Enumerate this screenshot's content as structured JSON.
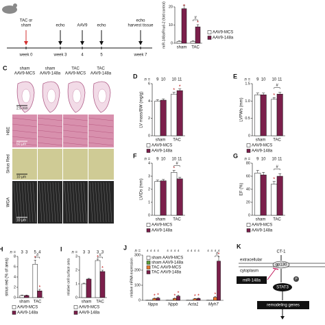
{
  "chart_data": [
    {
      "type": "bar",
      "ylabel": "miR-148a/Rnu6-2 (fold control)",
      "categories": [
        "sham",
        "TAC"
      ],
      "series": [
        {
          "name": "AAV9-MCS",
          "color": "#ffffff",
          "values": [
            1,
            1
          ],
          "errors": [
            0.3,
            0.3
          ]
        },
        {
          "name": "AAV9-148a",
          "color": "#7b1f4b",
          "values": [
            19,
            9
          ],
          "errors": [
            2,
            1.2
          ],
          "stars": [
            "*",
            "*"
          ]
        }
      ],
      "ylim": [
        0,
        20
      ],
      "yticks": [
        0,
        10,
        20
      ],
      "bracket": "#",
      "legend": "right"
    },
    {
      "type": "bar",
      "panel": "D",
      "ylabel": "LV mass/BW (mg/g)",
      "n_label": "n =",
      "n": [
        9,
        10,
        10,
        11
      ],
      "categories": [
        "sham",
        "TAC"
      ],
      "series": [
        {
          "name": "AAV9-MCS",
          "color": "#ffffff",
          "values": [
            4.0,
            4.8
          ],
          "errors": [
            0.15,
            0.2
          ],
          "stars": [
            null,
            "*"
          ]
        },
        {
          "name": "AAV9-148a",
          "color": "#7b1f4b",
          "values": [
            4.1,
            5.2
          ],
          "errors": [
            0.15,
            0.2
          ],
          "stars": [
            null,
            "*"
          ]
        }
      ],
      "ylim": [
        0,
        6
      ],
      "yticks": [
        0,
        2,
        4,
        6
      ],
      "legend": "below"
    },
    {
      "type": "bar",
      "panel": "E",
      "ylabel": "LVPWs (mm)",
      "n_label": "n =",
      "n": [
        9,
        10,
        10,
        11
      ],
      "categories": [
        "sham",
        "TAC"
      ],
      "series": [
        {
          "name": "AAV9-MCS",
          "color": "#ffffff",
          "values": [
            1.18,
            1.05
          ],
          "errors": [
            0.05,
            0.05
          ],
          "stars": [
            null,
            "*"
          ]
        },
        {
          "name": "AAV9-148a",
          "color": "#7b1f4b",
          "values": [
            1.18,
            1.2
          ],
          "errors": [
            0.05,
            0.05
          ]
        }
      ],
      "ylim": [
        0,
        1.5
      ],
      "yticks": [
        0,
        0.5,
        {
          "value": 1,
          "label": "1.0"
        },
        1.5
      ],
      "bracket": "#",
      "legend": "below"
    },
    {
      "type": "bar",
      "panel": "F",
      "ylabel": "LVIDs (mm)",
      "n_label": "n =",
      "n": [
        9,
        10,
        10,
        11
      ],
      "categories": [
        "sham",
        "TAC"
      ],
      "series": [
        {
          "name": "AAV9-MCS",
          "color": "#ffffff",
          "values": [
            2.6,
            3.3
          ],
          "errors": [
            0.1,
            0.15
          ],
          "stars": [
            null,
            "*"
          ]
        },
        {
          "name": "AAV9-148a",
          "color": "#7b1f4b",
          "values": [
            2.65,
            2.8
          ],
          "errors": [
            0.1,
            0.12
          ]
        }
      ],
      "ylim": [
        0,
        4
      ],
      "yticks": [
        0,
        1,
        2,
        3,
        4
      ],
      "bracket": "#",
      "legend": "below"
    },
    {
      "type": "bar",
      "panel": "G",
      "ylabel": "EF (%)",
      "n_label": "n =",
      "n": [
        9,
        10,
        10,
        11
      ],
      "categories": [
        "sham",
        "TAC"
      ],
      "series": [
        {
          "name": "AAV9-MCS",
          "color": "#ffffff",
          "values": [
            65,
            48
          ],
          "errors": [
            4,
            4
          ],
          "stars": [
            null,
            "*"
          ]
        },
        {
          "name": "AAV9-148a",
          "color": "#7b1f4b",
          "values": [
            62,
            60
          ],
          "errors": [
            4,
            4
          ]
        }
      ],
      "ylim": [
        0,
        80
      ],
      "yticks": [
        0,
        20,
        40,
        60,
        80
      ],
      "bracket": "#",
      "legend": "below"
    },
    {
      "type": "bar",
      "panel": "H",
      "ylabel": "sirius red (% of area)",
      "n_label": "n =",
      "n": [
        3,
        3,
        5,
        4
      ],
      "categories": [
        "sham",
        "TAC"
      ],
      "series": [
        {
          "name": "AAV9-MCS",
          "color": "#ffffff",
          "values": [
            0.4,
            6.5
          ],
          "errors": [
            0.1,
            0.8
          ],
          "stars": [
            null,
            "*"
          ]
        },
        {
          "name": "AAV9-148a",
          "color": "#7b1f4b",
          "values": [
            0.4,
            1.3
          ],
          "errors": [
            0.1,
            0.3
          ],
          "stars": [
            null,
            "*"
          ]
        }
      ],
      "ylim": [
        0,
        8
      ],
      "yticks": [
        0,
        2,
        4,
        6,
        8
      ],
      "bracket": "#",
      "legend": "below"
    },
    {
      "type": "bar",
      "panel": "I",
      "ylabel": "relative cell surface area",
      "n_label": "n =",
      "n": [
        3,
        3,
        3,
        3
      ],
      "categories": [
        "sham",
        "TAC"
      ],
      "series": [
        {
          "name": "AAV9-MCS",
          "color": "#ffffff",
          "values": [
            1,
            2.7
          ],
          "errors": [
            0.05,
            0.1
          ],
          "stars": [
            null,
            "*"
          ]
        },
        {
          "name": "AAV9-148a",
          "color": "#7b1f4b",
          "values": [
            1.35,
            1.9
          ],
          "errors": [
            0.05,
            0.1
          ],
          "stars": [
            null,
            "*"
          ]
        }
      ],
      "ylim": [
        0,
        3
      ],
      "yticks": [
        0,
        1,
        2,
        3
      ],
      "bracket": "#",
      "legend": "below"
    },
    {
      "type": "bar",
      "panel": "J",
      "ylabel": "relative mRNA expression",
      "n_label": "n =",
      "n": [
        4,
        4,
        4,
        4,
        4,
        4,
        4,
        4,
        4,
        4,
        4,
        4,
        4,
        4,
        4,
        4
      ],
      "categories": [
        "Nppa",
        "Nppb",
        "Acta1",
        "Myh7"
      ],
      "series": [
        {
          "name": "sham AAV9-MCS",
          "color": "#ffffff",
          "values": [
            1,
            1,
            1,
            1
          ],
          "errors": [
            0.5,
            0.5,
            0.5,
            0.5
          ]
        },
        {
          "name": "sham AAV9-148a",
          "color": "#5a9e3a",
          "values": [
            1,
            1,
            1,
            1
          ],
          "errors": [
            0.5,
            0.5,
            0.5,
            0.5
          ]
        },
        {
          "name": "TAC AAV9-MCS",
          "color": "#e8762b",
          "values": [
            12,
            12,
            10,
            20
          ],
          "errors": [
            3,
            3,
            3,
            5
          ],
          "stars": [
            "*",
            "*",
            "*",
            "*"
          ]
        },
        {
          "name": "TAC AAV9-148a",
          "color": "#7b1f4b",
          "values": [
            15,
            28,
            12,
            260
          ],
          "errors": [
            4,
            6,
            3,
            30
          ],
          "stars": [
            "*",
            "*",
            "*",
            "*"
          ]
        }
      ],
      "ylim": [
        0,
        300
      ],
      "yticks": [
        0,
        100,
        200,
        300
      ],
      "bracket": "#",
      "legend": "inside"
    }
  ],
  "timeline": {
    "top": [
      [
        "TAC or",
        "sham"
      ],
      [
        "echo"
      ],
      [
        "AAV9"
      ],
      [
        "echo"
      ],
      [
        "echo",
        "harvest tissue"
      ]
    ],
    "bottom": [
      "week 0",
      "week 3",
      "4",
      "5",
      "week 7"
    ]
  },
  "micrographs": {
    "panel": "C",
    "columns": [
      [
        "sham",
        "AAV9-MCS"
      ],
      [
        "sham",
        "AAV9-148a"
      ],
      [
        "TAC",
        "AAV9-MCS"
      ],
      [
        "TAC",
        "AAV9-148a"
      ]
    ],
    "rows": [
      "H&E",
      "Sirius Red",
      "WGA"
    ],
    "scale_bars": [
      "2.5 mm",
      "50 µm",
      "10 µm",
      "10 µm"
    ]
  },
  "pathway": {
    "panel": "K",
    "ligand": "CT-1",
    "extracellular": "extracellular",
    "cytoplasm": "cytoplasm",
    "receptor": "gp130",
    "inhibitor": "miR-148a",
    "phospho": "P",
    "effector": "STAT3",
    "output": "remodeling genes"
  }
}
